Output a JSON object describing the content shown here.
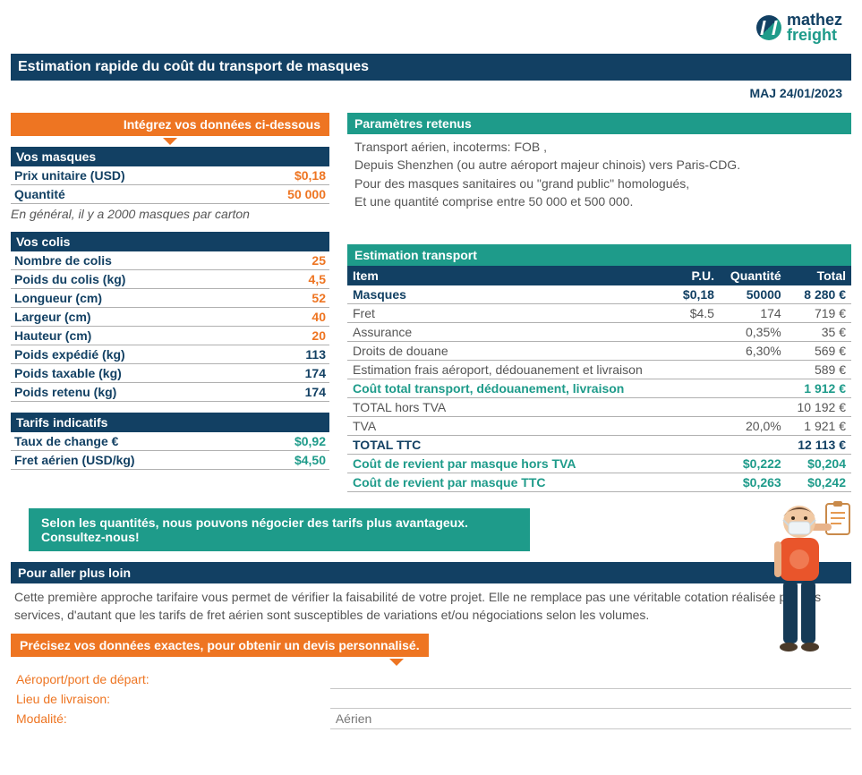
{
  "brand": {
    "line1": "mathez",
    "line2": "freight"
  },
  "title": "Estimation rapide du coût du transport de masques",
  "maj": "MAJ 24/01/2023",
  "callout_input": "Intégrez vos données ci-dessous",
  "colors": {
    "navy": "#124063",
    "teal": "#1e9b8a",
    "orange": "#ee7522",
    "grey_text": "#555555",
    "rule": "#b0b0b0"
  },
  "masks": {
    "heading": "Vos masques",
    "unit_price_label": "Prix unitaire (USD)",
    "unit_price": "$0,18",
    "qty_label": "Quantité",
    "qty": "50 000",
    "note": "En général, il y a 2000 masques par carton"
  },
  "packages": {
    "heading": "Vos colis",
    "rows": [
      {
        "label": "Nombre de colis",
        "value": "25",
        "color": "orange"
      },
      {
        "label": "Poids du colis (kg)",
        "value": "4,5",
        "color": "orange"
      },
      {
        "label": "Longueur (cm)",
        "value": "52",
        "color": "orange"
      },
      {
        "label": "Largeur (cm)",
        "value": "40",
        "color": "orange"
      },
      {
        "label": "Hauteur (cm)",
        "value": "20",
        "color": "orange"
      },
      {
        "label": "Poids expédié (kg)",
        "value": "113",
        "color": "navy"
      },
      {
        "label": "Poids taxable (kg)",
        "value": "174",
        "color": "navy"
      },
      {
        "label": "Poids retenu (kg)",
        "value": "174",
        "color": "navy"
      }
    ]
  },
  "rates": {
    "heading": "Tarifs indicatifs",
    "rows": [
      {
        "label": "Taux de change €",
        "value": "$0,92"
      },
      {
        "label": "Fret aérien (USD/kg)",
        "value": "$4,50"
      }
    ]
  },
  "params": {
    "heading": "Paramètres retenus",
    "lines": [
      "Transport aérien, incoterms: FOB ,",
      "Depuis Shenzhen (ou autre aéroport majeur chinois) vers Paris-CDG.",
      "Pour des masques sanitaires ou \"grand public\" homologués,",
      "Et  une quantité comprise entre 50 000 et 500 000."
    ]
  },
  "estimate": {
    "heading": "Estimation transport",
    "columns": [
      "Item",
      "P.U.",
      "Quantité",
      "Total"
    ],
    "rows": [
      {
        "cells": [
          "Masques",
          "$0,18",
          "50000",
          "8 280 €"
        ],
        "style": "bold"
      },
      {
        "cells": [
          "Fret",
          "$4.5",
          "174",
          "719 €"
        ],
        "style": ""
      },
      {
        "cells": [
          "Assurance",
          "",
          "0,35%",
          "35 €"
        ],
        "style": ""
      },
      {
        "cells": [
          "Droits de douane",
          "",
          "6,30%",
          "569 €"
        ],
        "style": ""
      },
      {
        "cells": [
          "Estimation frais aéroport, dédouanement et livraison",
          "",
          "",
          "589 €"
        ],
        "style": ""
      },
      {
        "cells": [
          "Coût total transport, dédouanement, livraison",
          "",
          "",
          "1 912 €"
        ],
        "style": "teal"
      },
      {
        "cells": [
          "TOTAL hors TVA",
          "",
          "",
          "10 192 €"
        ],
        "style": ""
      },
      {
        "cells": [
          "TVA",
          "",
          "20,0%",
          "1 921 €"
        ],
        "style": ""
      },
      {
        "cells": [
          "TOTAL TTC",
          "",
          "",
          "12 113 €"
        ],
        "style": "bold"
      },
      {
        "cells": [
          "Coût de revient par masque  hors TVA",
          "",
          "$0,222",
          "$0,204"
        ],
        "style": "teal"
      },
      {
        "cells": [
          "Coût de revient par masque  TTC",
          "",
          "$0,263",
          "$0,242"
        ],
        "style": "teal"
      }
    ]
  },
  "tip": "Selon les quantités, nous pouvons négocier des tarifs plus avantageux. Consultez-nous!",
  "farther": {
    "heading": "Pour aller plus loin",
    "body": "Cette première approche tarifaire vous permet de vérifier la faisabilité de votre projet. Elle ne remplace pas une véritable cotation réalisée par nos services, d'autant que les tarifs de fret aérien sont susceptibles de variations et/ou négociations selon les volumes."
  },
  "quote_call": "Précisez vos données exactes, pour obtenir un devis personnalisé.",
  "form": {
    "rows": [
      {
        "label": "Aéroport/port de départ:",
        "value": ""
      },
      {
        "label": "Lieu de livraison:",
        "value": ""
      },
      {
        "label": "Modalité:",
        "value": "Aérien"
      }
    ]
  }
}
